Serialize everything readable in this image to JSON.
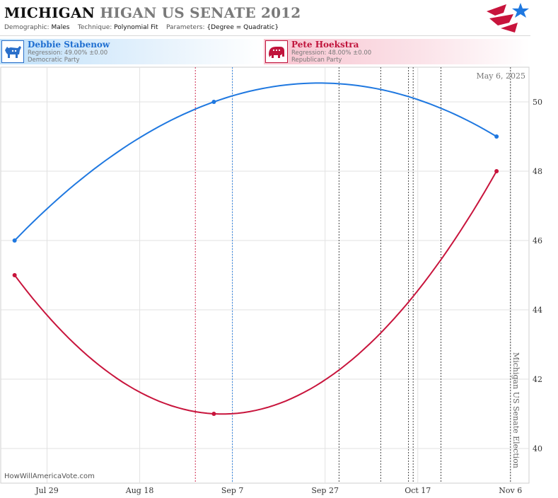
{
  "header": {
    "title_state": "MICHIGAN",
    "title_rest": "HIGAN US SENATE 2012",
    "demographic_label": "Demographic:",
    "demographic_value": "Males",
    "technique_label": "Technique:",
    "technique_value": "Polynomial Fit",
    "parameters_label": "Parameters:",
    "parameters_value": "{Degree = Quadratic}"
  },
  "candidates": [
    {
      "name": "Debbie Stabenow",
      "regression": "Regression: 49.00% ±0.00",
      "party": "Democratic Party",
      "icon": "donkey-icon",
      "color": "#1f78e0"
    },
    {
      "name": "Pete Hoekstra",
      "regression": "Regression: 48.00% ±0.00",
      "party": "Republican Party",
      "icon": "elephant-icon",
      "color": "#c8143c"
    }
  ],
  "chart_data": {
    "type": "line",
    "title": "MICHIGAN HIGAN US SENATE 2012",
    "ylim": [
      39,
      51
    ],
    "y_ticks": [
      40,
      42,
      44,
      46,
      48,
      50
    ],
    "x_range": [
      "2012-07-19",
      "2012-11-10"
    ],
    "x_ticks": [
      {
        "date": "2012-07-29",
        "label": "Jul 29"
      },
      {
        "date": "2012-08-18",
        "label": "Aug 18"
      },
      {
        "date": "2012-09-07",
        "label": "Sep 7"
      },
      {
        "date": "2012-09-27",
        "label": "Sep 27"
      },
      {
        "date": "2012-10-17",
        "label": "Oct 17"
      },
      {
        "date": "2012-11-06",
        "label": "Nov 6"
      }
    ],
    "date_annotation": "May 6, 2025",
    "vertical_annotation": "Michigan US Senate Election",
    "series": [
      {
        "name": "Debbie Stabenow",
        "color": "#1f78e0",
        "points": [
          {
            "x": "2012-07-22",
            "y": 46.0
          },
          {
            "x": "2012-09-03",
            "y": 50.0
          },
          {
            "x": "2012-11-03",
            "y": 49.0
          }
        ]
      },
      {
        "name": "Pete Hoekstra",
        "color": "#c8143c",
        "points": [
          {
            "x": "2012-07-22",
            "y": 45.0
          },
          {
            "x": "2012-09-03",
            "y": 41.0
          },
          {
            "x": "2012-11-03",
            "y": 48.0
          }
        ]
      }
    ],
    "vertical_lines": [
      {
        "x": "2012-08-30",
        "color": "#c8143c"
      },
      {
        "x": "2012-09-07",
        "color": "#1f78e0"
      },
      {
        "x": "2012-09-30",
        "color": "#333333"
      },
      {
        "x": "2012-10-09",
        "color": "#333333"
      },
      {
        "x": "2012-10-15",
        "color": "#333333"
      },
      {
        "x": "2012-10-16",
        "color": "#333333"
      },
      {
        "x": "2012-10-22",
        "color": "#333333"
      },
      {
        "x": "2012-11-06",
        "color": "#333333"
      }
    ],
    "grid": true
  },
  "footer": {
    "watermark": "HowWillAmericaVote.com"
  }
}
